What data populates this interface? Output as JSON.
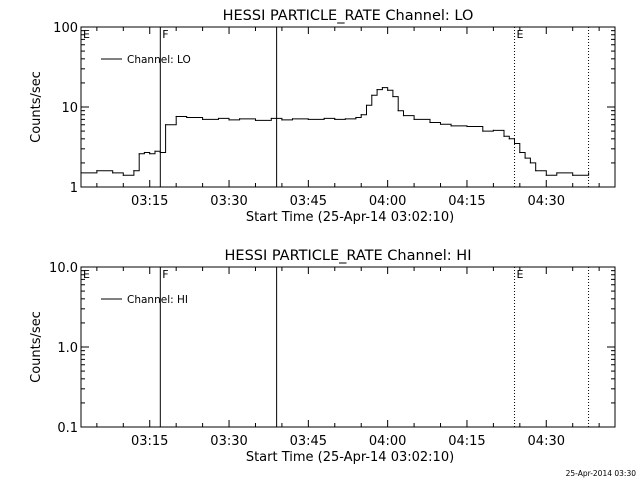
{
  "footer_stamp": "25-Apr-2014 03:30",
  "chart_data": [
    {
      "type": "line",
      "title": "HESSI PARTICLE_RATE Channel: LO",
      "xlabel": "Start Time (25-Apr-14 03:02:10)",
      "ylabel": "Counts/sec",
      "y_scale": "log",
      "ylim": [
        1,
        100
      ],
      "xlim": [
        "03:02",
        "04:43"
      ],
      "x_ticks": [
        "03:15",
        "03:30",
        "03:45",
        "04:00",
        "04:15",
        "04:30"
      ],
      "y_ticks": [
        "1",
        "10",
        "100"
      ],
      "legend": {
        "label": "Channel: LO",
        "placement": "top-left"
      },
      "markers": [
        {
          "label": "E",
          "x": "03:02",
          "style": "solid"
        },
        {
          "label": "F",
          "x": "03:17",
          "style": "solid"
        },
        {
          "label": "",
          "x": "03:39",
          "style": "solid"
        },
        {
          "label": "E",
          "x": "04:24",
          "style": "dotted"
        },
        {
          "label": "",
          "x": "04:38",
          "style": "dotted"
        }
      ],
      "series": [
        {
          "name": "Channel: LO",
          "x": [
            "03:02",
            "03:05",
            "03:08",
            "03:10",
            "03:12",
            "03:13",
            "03:14",
            "03:15",
            "03:16",
            "03:17",
            "03:18",
            "03:20",
            "03:22",
            "03:25",
            "03:28",
            "03:30",
            "03:32",
            "03:35",
            "03:38",
            "03:40",
            "03:42",
            "03:45",
            "03:48",
            "03:50",
            "03:52",
            "03:54",
            "03:55",
            "03:56",
            "03:57",
            "03:58",
            "03:59",
            "04:00",
            "04:01",
            "04:02",
            "04:03",
            "04:05",
            "04:08",
            "04:10",
            "04:12",
            "04:15",
            "04:18",
            "04:20",
            "04:22",
            "04:23",
            "04:24",
            "04:25",
            "04:26",
            "04:27",
            "04:28",
            "04:30",
            "04:32",
            "04:35",
            "04:38"
          ],
          "y": [
            1.5,
            1.6,
            1.5,
            1.4,
            1.6,
            2.6,
            2.7,
            2.6,
            2.8,
            2.7,
            6.0,
            7.6,
            7.4,
            7.0,
            7.2,
            6.9,
            7.1,
            6.8,
            7.2,
            6.9,
            7.1,
            7.0,
            7.2,
            7.0,
            7.1,
            7.4,
            8.0,
            10.5,
            14.0,
            16.5,
            17.5,
            16.2,
            13.5,
            9.0,
            7.8,
            7.0,
            6.4,
            6.1,
            5.8,
            5.7,
            5.0,
            5.1,
            4.3,
            4.0,
            3.5,
            2.7,
            2.3,
            2.0,
            1.6,
            1.4,
            1.5,
            1.4,
            1.5
          ]
        }
      ]
    },
    {
      "type": "line",
      "title": "HESSI PARTICLE_RATE Channel: HI",
      "xlabel": "Start Time (25-Apr-14 03:02:10)",
      "ylabel": "Counts/sec",
      "y_scale": "log",
      "ylim": [
        0.1,
        10
      ],
      "xlim": [
        "03:02",
        "04:43"
      ],
      "x_ticks": [
        "03:15",
        "03:30",
        "03:45",
        "04:00",
        "04:15",
        "04:30"
      ],
      "y_ticks": [
        "0.1",
        "1.0",
        "10.0"
      ],
      "legend": {
        "label": "Channel: HI",
        "placement": "top-left"
      },
      "markers": [
        {
          "label": "E",
          "x": "03:02",
          "style": "solid"
        },
        {
          "label": "F",
          "x": "03:17",
          "style": "solid"
        },
        {
          "label": "",
          "x": "03:39",
          "style": "solid"
        },
        {
          "label": "E",
          "x": "04:24",
          "style": "dotted"
        },
        {
          "label": "",
          "x": "04:38",
          "style": "dotted"
        }
      ],
      "series": [
        {
          "name": "Channel: HI",
          "x": [],
          "y": []
        }
      ]
    }
  ]
}
